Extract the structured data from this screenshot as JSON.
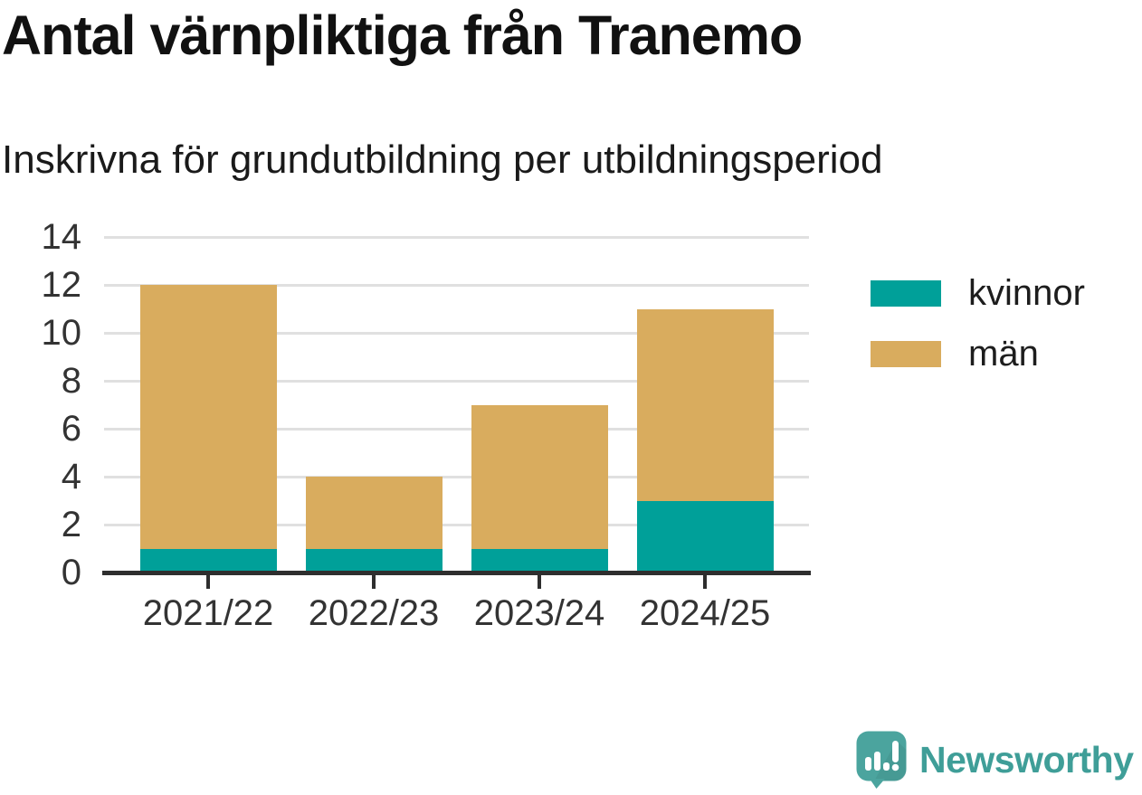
{
  "chart_data": {
    "type": "bar",
    "stacked": true,
    "title": "Antal värnpliktiga från Tranemo",
    "subtitle": "Inskrivna för grundutbildning per utbildningsperiod",
    "categories": [
      "2021/22",
      "2022/23",
      "2023/24",
      "2024/25"
    ],
    "series": [
      {
        "name": "kvinnor",
        "color": "#00a099",
        "values": [
          1,
          1,
          1,
          3
        ]
      },
      {
        "name": "män",
        "color": "#d9ac5e",
        "values": [
          11,
          3,
          6,
          8
        ]
      }
    ],
    "totals": [
      12,
      4,
      7,
      11
    ],
    "xlabel": "",
    "ylabel": "",
    "ylim": [
      0,
      14
    ],
    "yticks": [
      0,
      2,
      4,
      6,
      8,
      10,
      12,
      14
    ],
    "grid": true,
    "legend_position": "right"
  },
  "footer": {
    "brand": "Newsworthy"
  },
  "colors": {
    "kvinnor": "#00a099",
    "man": "#d9ac5e",
    "gridline": "#e0e0e0",
    "axis": "#2e2e2e",
    "tick_text": "#333333",
    "title_text": "#111111",
    "brand_teal": "#3f9e98",
    "logo_bubble": "#4ba49e"
  }
}
